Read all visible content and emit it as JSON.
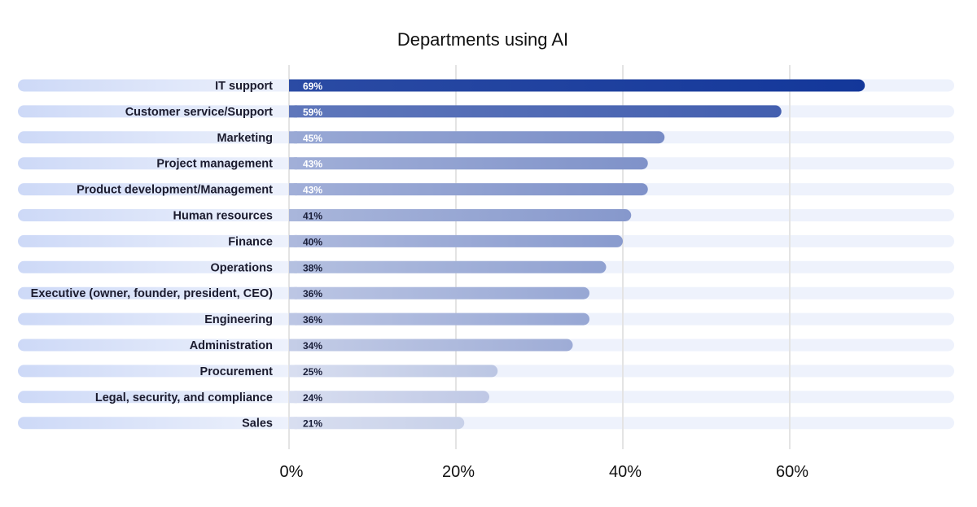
{
  "chart_data": {
    "type": "bar",
    "orientation": "horizontal",
    "title": "Departments using AI",
    "xlabel": "",
    "ylabel": "",
    "xlim": [
      0,
      80
    ],
    "grid": true,
    "legend": "none",
    "ticks": [
      {
        "value": 0,
        "label": "0%"
      },
      {
        "value": 20,
        "label": "20%"
      },
      {
        "value": 40,
        "label": "40%"
      },
      {
        "value": 60,
        "label": "60%"
      }
    ],
    "categories": [
      "IT support",
      "Customer service/Support",
      "Marketing",
      "Project management",
      "Product development/Management",
      "Human resources",
      "Finance",
      "Operations",
      "Executive (owner, founder, president, CEO)",
      "Engineering",
      "Administration",
      "Procurement",
      "Legal, security, and compliance",
      "Sales"
    ],
    "values": [
      69,
      59,
      45,
      43,
      43,
      41,
      40,
      38,
      36,
      36,
      34,
      25,
      24,
      21
    ],
    "data_labels": [
      "69%",
      "59%",
      "45%",
      "43%",
      "43%",
      "41%",
      "40%",
      "38%",
      "36%",
      "36%",
      "34%",
      "25%",
      "24%",
      "21%"
    ],
    "colors": {
      "bar_dark": "#13379a",
      "bar_light": "#d8def0",
      "track": "#eef2fc",
      "label_track_start": "#cdd9f7",
      "label_track_end": "#eef2fc",
      "grid": "#e4e4e4",
      "text": "#1b1b2e"
    }
  }
}
